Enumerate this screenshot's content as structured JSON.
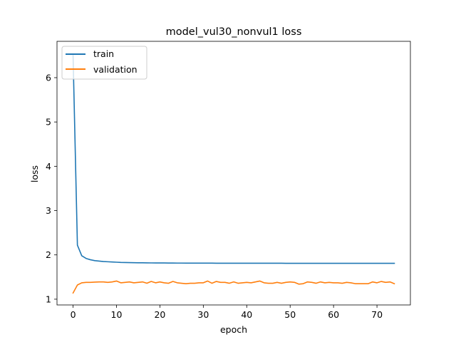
{
  "chart_data": {
    "type": "line",
    "title": "model_vul30_nonvul1 loss",
    "xlabel": "epoch",
    "ylabel": "loss",
    "xlim": [
      -3.7,
      77.7
    ],
    "ylim": [
      0.87,
      6.82
    ],
    "xticks": [
      0,
      10,
      20,
      30,
      40,
      50,
      60,
      70
    ],
    "yticks": [
      1,
      2,
      3,
      4,
      5,
      6
    ],
    "grid": false,
    "legend_position": "upper left",
    "series": [
      {
        "name": "train",
        "color": "#1f77b4",
        "x": [
          0,
          1,
          2,
          3,
          4,
          5,
          6,
          7,
          8,
          9,
          10,
          11,
          12,
          13,
          14,
          15,
          16,
          17,
          18,
          19,
          20,
          21,
          22,
          23,
          24,
          25,
          26,
          27,
          28,
          29,
          30,
          31,
          32,
          33,
          34,
          35,
          36,
          37,
          38,
          39,
          40,
          41,
          42,
          43,
          44,
          45,
          46,
          47,
          48,
          49,
          50,
          51,
          52,
          53,
          54,
          55,
          56,
          57,
          58,
          59,
          60,
          61,
          62,
          63,
          64,
          65,
          66,
          67,
          68,
          69,
          70,
          71,
          72,
          73,
          74
        ],
        "y": [
          6.5,
          2.22,
          1.98,
          1.92,
          1.89,
          1.87,
          1.86,
          1.85,
          1.845,
          1.84,
          1.835,
          1.83,
          1.828,
          1.826,
          1.824,
          1.822,
          1.821,
          1.82,
          1.819,
          1.818,
          1.817,
          1.817,
          1.816,
          1.816,
          1.815,
          1.815,
          1.814,
          1.814,
          1.814,
          1.813,
          1.813,
          1.813,
          1.813,
          1.812,
          1.812,
          1.812,
          1.812,
          1.812,
          1.812,
          1.811,
          1.811,
          1.811,
          1.811,
          1.811,
          1.811,
          1.811,
          1.811,
          1.811,
          1.811,
          1.81,
          1.81,
          1.81,
          1.81,
          1.81,
          1.81,
          1.81,
          1.81,
          1.81,
          1.81,
          1.81,
          1.81,
          1.81,
          1.81,
          1.81,
          1.81,
          1.81,
          1.81,
          1.81,
          1.81,
          1.81,
          1.81,
          1.81,
          1.81,
          1.81,
          1.81
        ]
      },
      {
        "name": "validation",
        "color": "#ff7f0e",
        "x": [
          0,
          1,
          2,
          3,
          4,
          5,
          6,
          7,
          8,
          9,
          10,
          11,
          12,
          13,
          14,
          15,
          16,
          17,
          18,
          19,
          20,
          21,
          22,
          23,
          24,
          25,
          26,
          27,
          28,
          29,
          30,
          31,
          32,
          33,
          34,
          35,
          36,
          37,
          38,
          39,
          40,
          41,
          42,
          43,
          44,
          45,
          46,
          47,
          48,
          49,
          50,
          51,
          52,
          53,
          54,
          55,
          56,
          57,
          58,
          59,
          60,
          61,
          62,
          63,
          64,
          65,
          66,
          67,
          68,
          69,
          70,
          71,
          72,
          73,
          74
        ],
        "y": [
          1.14,
          1.32,
          1.37,
          1.38,
          1.38,
          1.385,
          1.39,
          1.39,
          1.38,
          1.39,
          1.41,
          1.37,
          1.38,
          1.39,
          1.37,
          1.38,
          1.39,
          1.36,
          1.4,
          1.37,
          1.39,
          1.37,
          1.36,
          1.4,
          1.37,
          1.36,
          1.35,
          1.36,
          1.36,
          1.37,
          1.37,
          1.41,
          1.36,
          1.4,
          1.38,
          1.38,
          1.36,
          1.39,
          1.36,
          1.37,
          1.38,
          1.37,
          1.39,
          1.41,
          1.37,
          1.36,
          1.36,
          1.38,
          1.36,
          1.38,
          1.39,
          1.38,
          1.34,
          1.35,
          1.39,
          1.38,
          1.36,
          1.39,
          1.37,
          1.38,
          1.37,
          1.37,
          1.36,
          1.38,
          1.37,
          1.35,
          1.35,
          1.35,
          1.35,
          1.39,
          1.37,
          1.4,
          1.38,
          1.39,
          1.35
        ]
      }
    ]
  }
}
